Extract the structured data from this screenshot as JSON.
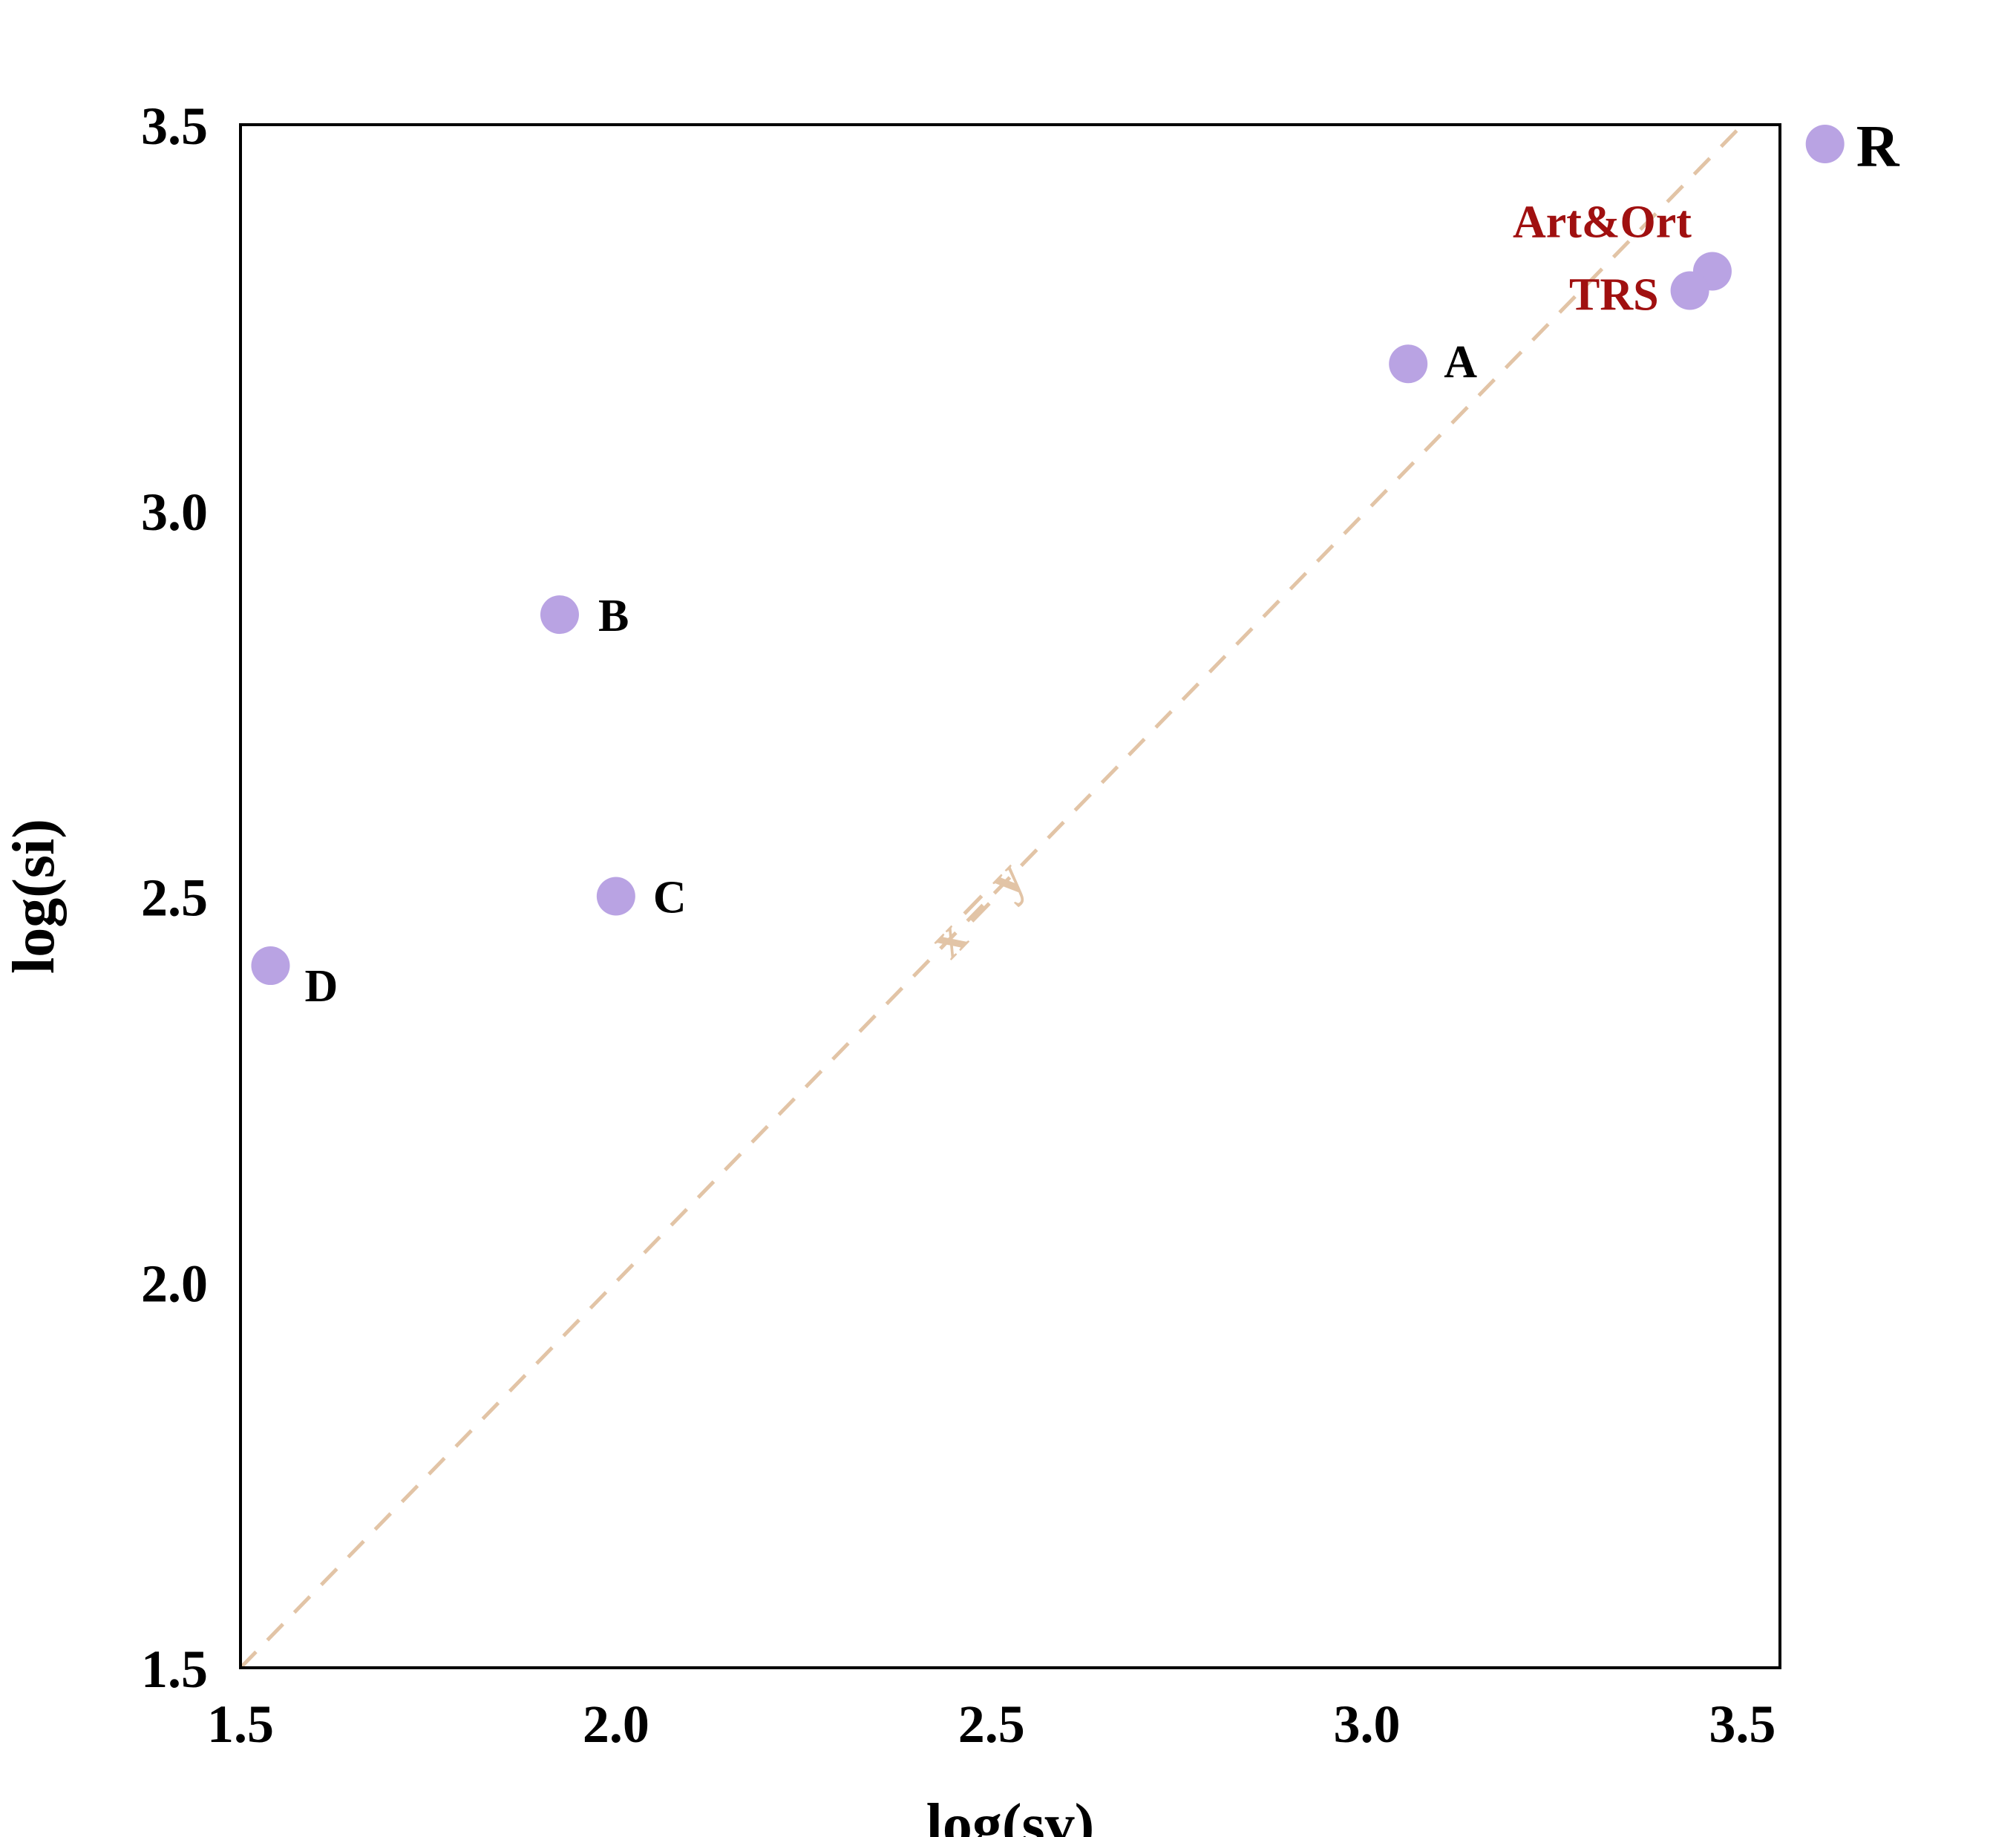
{
  "chart_data": {
    "type": "scatter",
    "title": "",
    "xlabel": "log(sv)",
    "ylabel": "log(si)",
    "xlim": [
      1.5,
      3.55
    ],
    "ylim": [
      1.5,
      3.5
    ],
    "xticks": [
      "1.5",
      "2.0",
      "2.5",
      "3.0",
      "3.5"
    ],
    "yticks": [
      "1.5",
      "2.0",
      "2.5",
      "3.0",
      "3.5"
    ],
    "grid": false,
    "reference_line": {
      "label": "x = y",
      "style": "dashed",
      "color": "#e2c4a6"
    },
    "marker_color": "#b9a3e3",
    "points": [
      {
        "label": "R",
        "x": 3.61,
        "y": 3.475,
        "label_color": "#000000"
      },
      {
        "label": "Art&Ort",
        "x": 3.46,
        "y": 3.31,
        "label_color": "#a01010"
      },
      {
        "label": "TRS",
        "x": 3.43,
        "y": 3.285,
        "label_color": "#a01010"
      },
      {
        "label": "A",
        "x": 3.055,
        "y": 3.19,
        "label_color": "#000000"
      },
      {
        "label": "B",
        "x": 1.925,
        "y": 2.865,
        "label_color": "#000000"
      },
      {
        "label": "C",
        "x": 2.0,
        "y": 2.5,
        "label_color": "#000000"
      },
      {
        "label": "D",
        "x": 1.54,
        "y": 2.41,
        "label_color": "#000000"
      }
    ]
  }
}
